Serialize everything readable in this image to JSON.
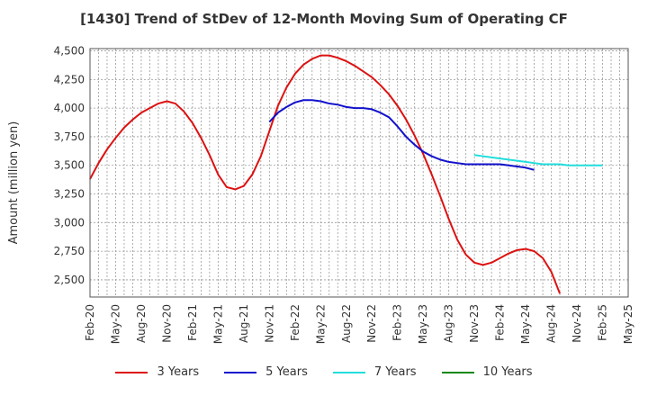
{
  "chart_data": {
    "type": "line",
    "title": "[1430]  Trend of StDev of 12-Month Moving Sum of Operating CF",
    "xlabel": "",
    "ylabel": "Amount (million yen)",
    "ylim": [
      2350,
      4520
    ],
    "yticks": [
      2500,
      2750,
      3000,
      3250,
      3500,
      3750,
      4000,
      4250,
      4500
    ],
    "ytick_labels": [
      "2,500",
      "2,750",
      "3,000",
      "3,250",
      "3,500",
      "3,750",
      "4,000",
      "4,250",
      "4,500"
    ],
    "xtick_labels": [
      "Feb-20",
      "May-20",
      "Aug-20",
      "Nov-20",
      "Feb-21",
      "May-21",
      "Aug-21",
      "Nov-21",
      "Feb-22",
      "May-22",
      "Aug-22",
      "Nov-22",
      "Feb-23",
      "May-23",
      "Aug-23",
      "Nov-23",
      "Feb-24",
      "May-24",
      "Aug-24",
      "Nov-24",
      "Feb-25",
      "May-25"
    ],
    "grid": true,
    "legend_position": "bottom",
    "series": [
      {
        "name": "3 Years",
        "color": "#dd1111",
        "start_month_index": 0,
        "values": [
          3380,
          3520,
          3640,
          3740,
          3830,
          3900,
          3960,
          4000,
          4040,
          4060,
          4040,
          3970,
          3870,
          3740,
          3590,
          3420,
          3310,
          3290,
          3320,
          3420,
          3580,
          3800,
          4020,
          4180,
          4300,
          4380,
          4430,
          4460,
          4460,
          4440,
          4410,
          4370,
          4320,
          4270,
          4200,
          4120,
          4020,
          3900,
          3760,
          3600,
          3420,
          3230,
          3030,
          2850,
          2720,
          2650,
          2630,
          2650,
          2690,
          2730,
          2760,
          2770,
          2750,
          2690,
          2570,
          2380
        ]
      },
      {
        "name": "5 Years",
        "color": "#1111cc",
        "start_month_index": 21,
        "values": [
          3880,
          3960,
          4010,
          4050,
          4070,
          4070,
          4060,
          4040,
          4030,
          4010,
          4000,
          4000,
          3990,
          3960,
          3920,
          3840,
          3750,
          3680,
          3620,
          3580,
          3550,
          3530,
          3520,
          3510,
          3510,
          3510,
          3510,
          3510,
          3500,
          3490,
          3480,
          3460
        ]
      },
      {
        "name": "7 Years",
        "color": "#22dddd",
        "start_month_index": 45,
        "values": [
          3590,
          3580,
          3570,
          3560,
          3550,
          3540,
          3530,
          3520,
          3510,
          3510,
          3510,
          3500,
          3500,
          3500,
          3500,
          3500
        ]
      },
      {
        "name": "10 Years",
        "color": "#118811",
        "start_month_index": 0,
        "values": []
      }
    ]
  }
}
